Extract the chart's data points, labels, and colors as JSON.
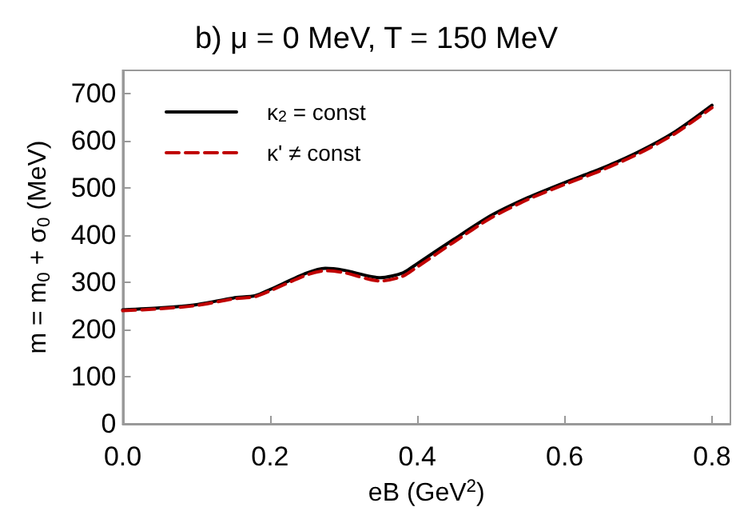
{
  "chart_data": {
    "type": "line",
    "title": "b) μ = 0 MeV, T = 150 MeV",
    "xlabel": "eB (GeV$^{2}$)",
    "ylabel": "m = m$_{0}$ + σ$_{0}$ (MeV)",
    "xlim": [
      0,
      0.825
    ],
    "xticks": [
      {
        "value": 0,
        "label": "0.0"
      },
      0.2,
      0.4,
      0.6,
      0.8
    ],
    "ylim": [
      0,
      750
    ],
    "yticks": [
      0,
      100,
      200,
      300,
      400,
      500,
      600,
      700
    ],
    "grid": false,
    "legend": "top left",
    "marker": "none",
    "x": [
      0,
      0.05,
      0.1,
      0.15,
      0.18,
      0.2,
      0.25,
      0.275,
      0.3,
      0.35,
      0.38,
      0.4,
      0.45,
      0.5,
      0.55,
      0.6,
      0.65,
      0.7,
      0.75,
      0.8
    ],
    "series": [
      {
        "name": "κ$_{2}$ = const",
        "color": "#000000",
        "line_style": "solid",
        "values": [
          242,
          246,
          253,
          267,
          272,
          285,
          320,
          330,
          326,
          310,
          320,
          340,
          392,
          442,
          480,
          512,
          542,
          577,
          620,
          676
        ]
      },
      {
        "name": "κ' ≠ const",
        "color": "#c00000",
        "line_style": "dashed",
        "values": [
          240,
          244,
          251,
          265,
          270,
          282,
          316,
          325,
          321,
          303,
          313,
          333,
          386,
          437,
          476,
          508,
          538,
          573,
          616,
          671
        ]
      }
    ]
  }
}
